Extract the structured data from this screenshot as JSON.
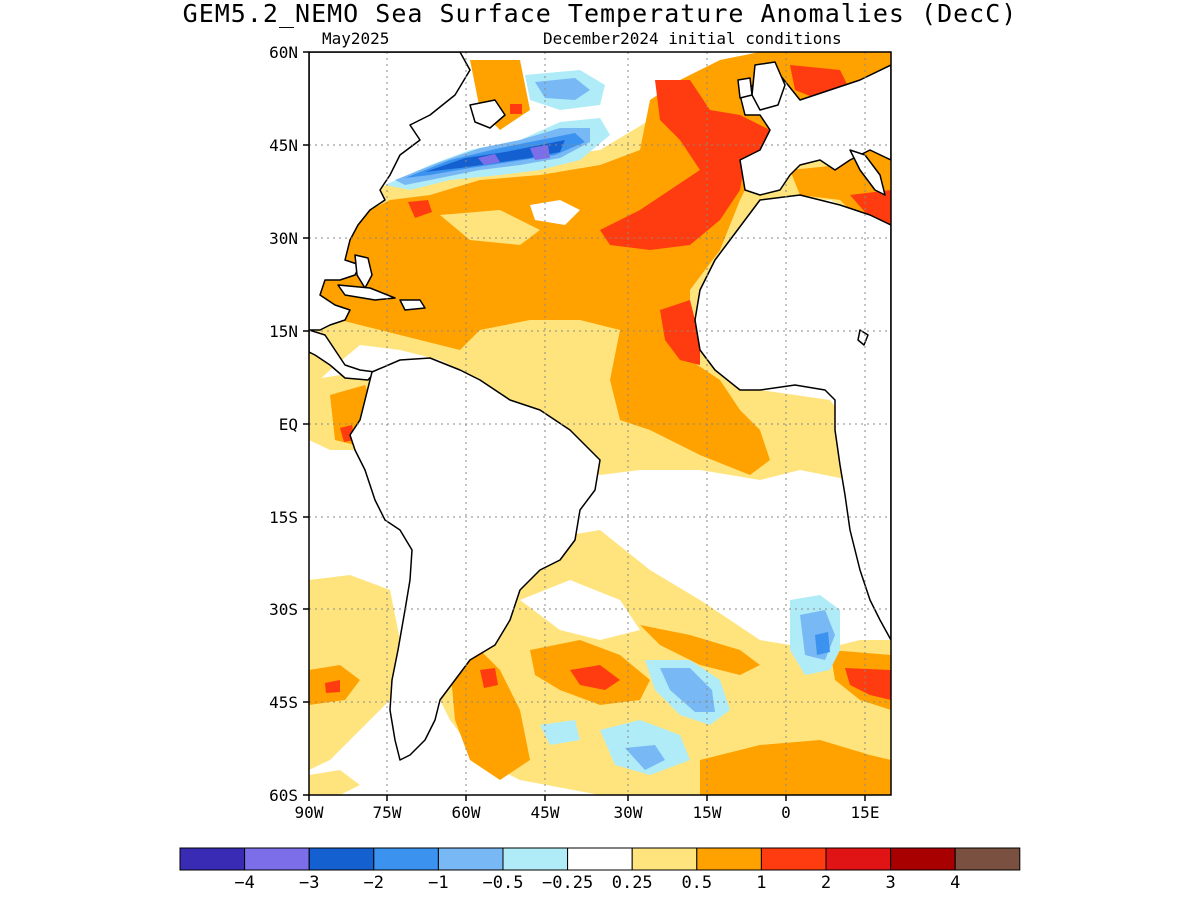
{
  "title": "GEM5.2_NEMO Sea Surface Temperature Anomalies (DecC)",
  "subtitle_left": "May2025",
  "subtitle_right": "December2024 initial conditions",
  "map": {
    "region": "Atlantic Ocean",
    "lon_range": [
      -90,
      18
    ],
    "lat_range": [
      -60,
      60
    ],
    "lat_ticks": [
      {
        "value": 60,
        "label": "60N"
      },
      {
        "value": 45,
        "label": "45N"
      },
      {
        "value": 30,
        "label": "30N"
      },
      {
        "value": 15,
        "label": "15N"
      },
      {
        "value": 0,
        "label": "EQ"
      },
      {
        "value": -15,
        "label": "15S"
      },
      {
        "value": -30,
        "label": "30S"
      },
      {
        "value": -45,
        "label": "45S"
      },
      {
        "value": -60,
        "label": "60S"
      }
    ],
    "lon_ticks": [
      {
        "value": -90,
        "label": "90W"
      },
      {
        "value": -75,
        "label": "75W"
      },
      {
        "value": -60,
        "label": "60W"
      },
      {
        "value": -45,
        "label": "45W"
      },
      {
        "value": -30,
        "label": "30W"
      },
      {
        "value": -15,
        "label": "15W"
      },
      {
        "value": 0,
        "label": "0"
      },
      {
        "value": 15,
        "label": "15E"
      }
    ],
    "grid": true
  },
  "colorbar": {
    "colors": [
      "#3a2bb5",
      "#7b6ee8",
      "#1560d0",
      "#3c93ef",
      "#78b8f5",
      "#b0ecf8",
      "#ffffff",
      "#ffe47e",
      "#ffa200",
      "#ff3b10",
      "#e01414",
      "#a80000",
      "#7a5040"
    ],
    "labels": [
      "-4",
      "-3",
      "-2",
      "-1",
      "-0.5",
      "-0.25",
      "0.25",
      "0.5",
      "1",
      "2",
      "3",
      "4"
    ]
  }
}
